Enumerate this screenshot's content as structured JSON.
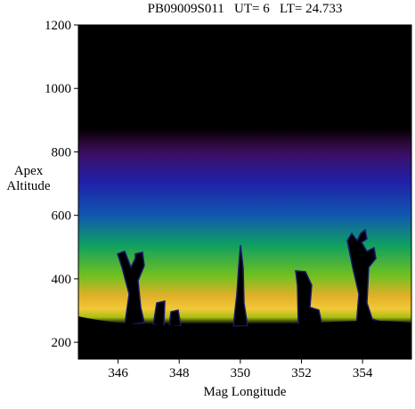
{
  "chart_data": {
    "type": "image",
    "title": "PB09009S011   UT= 6   LT= 24.733",
    "xlabel": "Mag Longitude",
    "ylabel": "Apex Altitude",
    "xlim": [
      344.7,
      355.6
    ],
    "ylim": [
      147,
      1200
    ],
    "xticks": [
      346,
      348,
      350,
      352,
      354
    ],
    "yticks": [
      200,
      400,
      600,
      800,
      1000,
      1200
    ]
  }
}
